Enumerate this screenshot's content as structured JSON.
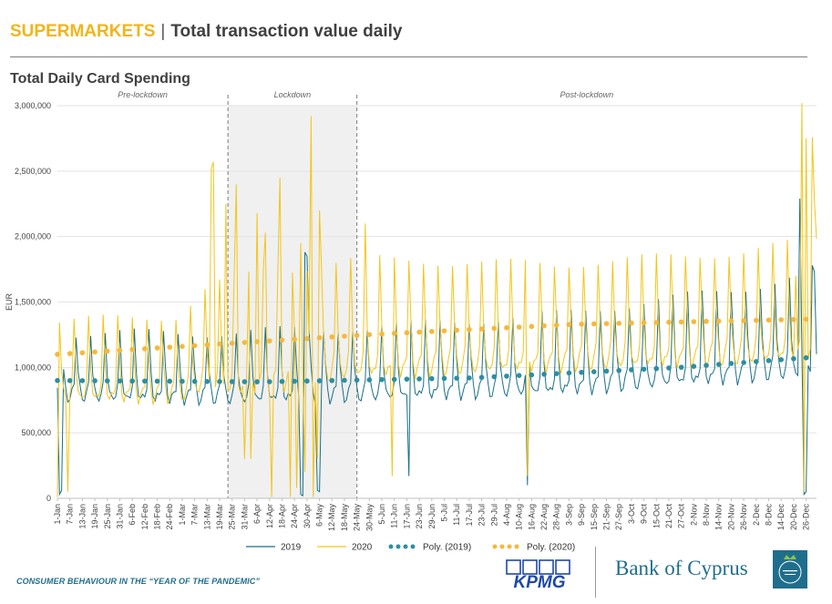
{
  "header": {
    "accent": "SUPERMARKETS",
    "separator": "|",
    "title": "Total transaction value daily"
  },
  "chart_data": {
    "type": "line",
    "title": "Total Daily Card Spending",
    "ylabel": "EUR",
    "ylim": [
      0,
      3000000
    ],
    "yticks": [
      "0",
      "500,000",
      "1,000,000",
      "1,500,000",
      "2,000,000",
      "2,500,000",
      "3,000,000"
    ],
    "xticks": [
      "1-Jan",
      "7-Jan",
      "13-Jan",
      "19-Jan",
      "25-Jan",
      "31-Jan",
      "6-Feb",
      "12-Feb",
      "18-Feb",
      "24-Feb",
      "1-Mar",
      "7-Mar",
      "13-Mar",
      "19-Mar",
      "25-Mar",
      "31-Mar",
      "6-Apr",
      "12-Apr",
      "18-Apr",
      "24-Apr",
      "30-Apr",
      "6-May",
      "12-May",
      "18-May",
      "24-May",
      "30-May",
      "5-Jun",
      "11-Jun",
      "17-Jun",
      "23-Jun",
      "29-Jun",
      "5-Jul",
      "11-Jul",
      "17-Jul",
      "23-Jul",
      "29-Jul",
      "4-Aug",
      "10-Aug",
      "16-Aug",
      "22-Aug",
      "28-Aug",
      "3-Sep",
      "9-Sep",
      "15-Sep",
      "21-Sep",
      "27-Sep",
      "3-Oct",
      "9-Oct",
      "15-Oct",
      "21-Oct",
      "27-Oct",
      "2-Nov",
      "8-Nov",
      "14-Nov",
      "20-Nov",
      "26-Nov",
      "2-Dec",
      "8-Dec",
      "14-Dec",
      "20-Dec",
      "26-Dec"
    ],
    "x_day_range": [
      1,
      366
    ],
    "periods": [
      {
        "label": "Pre-lockdown",
        "start_day": 1,
        "end_day": 83
      },
      {
        "label": "Lockdown",
        "start_day": 83,
        "end_day": 145
      },
      {
        "label": "Post-lockdown",
        "start_day": 145,
        "end_day": 366
      }
    ],
    "shaded_period": {
      "start_day": 83,
      "end_day": 145
    },
    "grid": "horizontal",
    "legend_position": "bottom",
    "series": [
      {
        "name": "2019",
        "style": "line",
        "color": "#1a6f8a",
        "baseline": [
          [
            1,
            800000
          ],
          [
            83,
            780000
          ],
          [
            145,
            800000
          ],
          [
            240,
            850000
          ],
          [
            366,
            1000000
          ]
        ],
        "weekly_peak": [
          [
            1,
            500000
          ],
          [
            150,
            550000
          ],
          [
            240,
            600000
          ],
          [
            330,
            700000
          ],
          [
            366,
            800000
          ]
        ],
        "spikes": [
          [
            120,
            1880000
          ],
          [
            121,
            1850000
          ],
          [
            358,
            2290000
          ],
          [
            364,
            1780000
          ],
          [
            365,
            1730000
          ]
        ],
        "dips": [
          [
            2,
            30000
          ],
          [
            3,
            60000
          ],
          [
            118,
            30000
          ],
          [
            119,
            20000
          ],
          [
            126,
            60000
          ],
          [
            127,
            50000
          ],
          [
            170,
            170000
          ],
          [
            227,
            100000
          ],
          [
            360,
            30000
          ],
          [
            361,
            50000
          ]
        ]
      },
      {
        "name": "2020",
        "style": "line",
        "color": "#f2c51c",
        "baseline": [
          [
            1,
            800000
          ],
          [
            60,
            800000
          ],
          [
            70,
            880000
          ],
          [
            83,
            850000
          ],
          [
            145,
            1000000
          ],
          [
            240,
            1050000
          ],
          [
            330,
            1100000
          ],
          [
            366,
            1150000
          ]
        ],
        "weekly_peak": [
          [
            1,
            600000
          ],
          [
            60,
            650000
          ],
          [
            83,
            900000
          ],
          [
            145,
            900000
          ],
          [
            240,
            800000
          ],
          [
            330,
            850000
          ],
          [
            366,
            900000
          ]
        ],
        "spikes": [
          [
            75,
            2520000
          ],
          [
            76,
            2570000
          ],
          [
            82,
            2250000
          ],
          [
            87,
            2400000
          ],
          [
            97,
            2180000
          ],
          [
            101,
            2030000
          ],
          [
            108,
            2450000
          ],
          [
            118,
            1950000
          ],
          [
            123,
            2920000
          ],
          [
            127,
            2200000
          ],
          [
            149,
            2100000
          ],
          [
            356,
            1700000
          ],
          [
            359,
            3020000
          ],
          [
            361,
            2750000
          ],
          [
            364,
            2760000
          ],
          [
            365,
            2270000
          ]
        ],
        "dips": [
          [
            1,
            10000
          ],
          [
            6,
            50000
          ],
          [
            91,
            300000
          ],
          [
            94,
            300000
          ],
          [
            104,
            10000
          ],
          [
            113,
            10000
          ],
          [
            116,
            80000
          ],
          [
            118,
            300000
          ],
          [
            120,
            200000
          ],
          [
            124,
            10000
          ],
          [
            126,
            300000
          ],
          [
            162,
            170000
          ],
          [
            227,
            170000
          ],
          [
            359,
            20000
          ],
          [
            360,
            50000
          ]
        ]
      },
      {
        "name": "Poly. (2019)",
        "style": "dotted",
        "color": "#2d8ea0",
        "trend": [
          [
            1,
            900000
          ],
          [
            100,
            890000
          ],
          [
            200,
            920000
          ],
          [
            300,
            1000000
          ],
          [
            366,
            1080000
          ]
        ]
      },
      {
        "name": "Poly. (2020)",
        "style": "dotted",
        "color": "#f5b83d",
        "trend": [
          [
            1,
            1100000
          ],
          [
            80,
            1180000
          ],
          [
            150,
            1250000
          ],
          [
            250,
            1330000
          ],
          [
            366,
            1370000
          ]
        ]
      }
    ]
  },
  "footer": {
    "left_text": "CONSUMER BEHAVIOUR IN THE “YEAR OF THE PANDEMIC”",
    "kpmg": "KPMG",
    "bank": "Bank of Cyprus"
  },
  "colors": {
    "accent": "#f2b519",
    "teal": "#1f6e8c",
    "kpmg_blue": "#1e49a6"
  }
}
